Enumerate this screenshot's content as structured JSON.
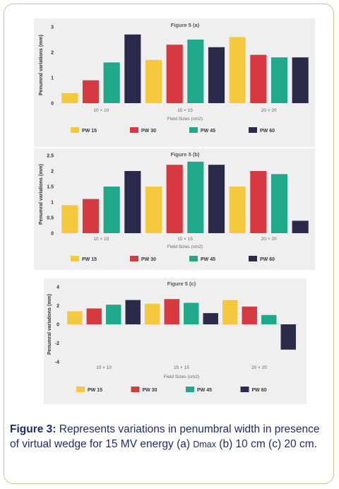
{
  "caption": {
    "label": "Figure 3:",
    "text_before": " Represents variations in penumbral width in presence of virtual wedge for 15 MV energy (a) ",
    "dmax": "Dmax",
    "text_after": "  (b) 10 cm (c) 20 cm."
  },
  "colors": {
    "PW 15": "#f5c93d",
    "PW 30": "#d63a40",
    "PW 45": "#1fa88a",
    "PW 60": "#2c2a4a"
  },
  "chart_data": [
    {
      "type": "bar",
      "title": "Figure 5 (a)",
      "xlabel": "Field Sizes (cm2)",
      "ylabel": "Penumral variations (mm)",
      "categories": [
        "10 × 10",
        "15 × 15",
        "20 × 20"
      ],
      "ylim": [
        0,
        3
      ],
      "yticks": [
        "0",
        "1",
        "2",
        "3"
      ],
      "series": [
        {
          "name": "PW 15",
          "values": [
            0.4,
            1.7,
            2.6
          ]
        },
        {
          "name": "PW 30",
          "values": [
            0.9,
            2.3,
            1.9
          ]
        },
        {
          "name": "PW 45",
          "values": [
            1.6,
            2.5,
            1.8
          ]
        },
        {
          "name": "PW 60",
          "values": [
            2.7,
            2.2,
            1.8
          ]
        }
      ],
      "legend": "bottom"
    },
    {
      "type": "bar",
      "title": "Figure 5 (b)",
      "xlabel": "Field Sizes (cm2)",
      "ylabel": "Penumral variations (mm)",
      "categories": [
        "10 × 10",
        "15 × 15",
        "20 × 20"
      ],
      "ylim": [
        0,
        2.5
      ],
      "yticks": [
        "0",
        "0.5",
        "1",
        "1.5",
        "2",
        "2.5"
      ],
      "series": [
        {
          "name": "PW 15",
          "values": [
            0.9,
            1.5,
            1.5
          ]
        },
        {
          "name": "PW 30",
          "values": [
            1.1,
            2.2,
            2.0
          ]
        },
        {
          "name": "PW 45",
          "values": [
            1.5,
            2.3,
            1.9
          ]
        },
        {
          "name": "PW 60",
          "values": [
            2.0,
            2.2,
            0.4
          ]
        }
      ],
      "legend": "bottom"
    },
    {
      "type": "bar",
      "title": "Figure 5 (c)",
      "xlabel": "Field Sizes (cm2)",
      "ylabel": "Penumral variations (mm)",
      "categories": [
        "10 × 10",
        "15 × 15",
        "20 × 20"
      ],
      "ylim": [
        -4,
        4
      ],
      "yticks": [
        "-4",
        "-2",
        "0",
        "2",
        "4"
      ],
      "series": [
        {
          "name": "PW 15",
          "values": [
            1.4,
            2.2,
            2.6
          ]
        },
        {
          "name": "PW 30",
          "values": [
            1.7,
            2.7,
            1.9
          ]
        },
        {
          "name": "PW 45",
          "values": [
            2.1,
            2.3,
            1.0
          ]
        },
        {
          "name": "PW 60",
          "values": [
            2.6,
            1.2,
            -2.7
          ]
        }
      ],
      "legend": "bottom"
    }
  ]
}
